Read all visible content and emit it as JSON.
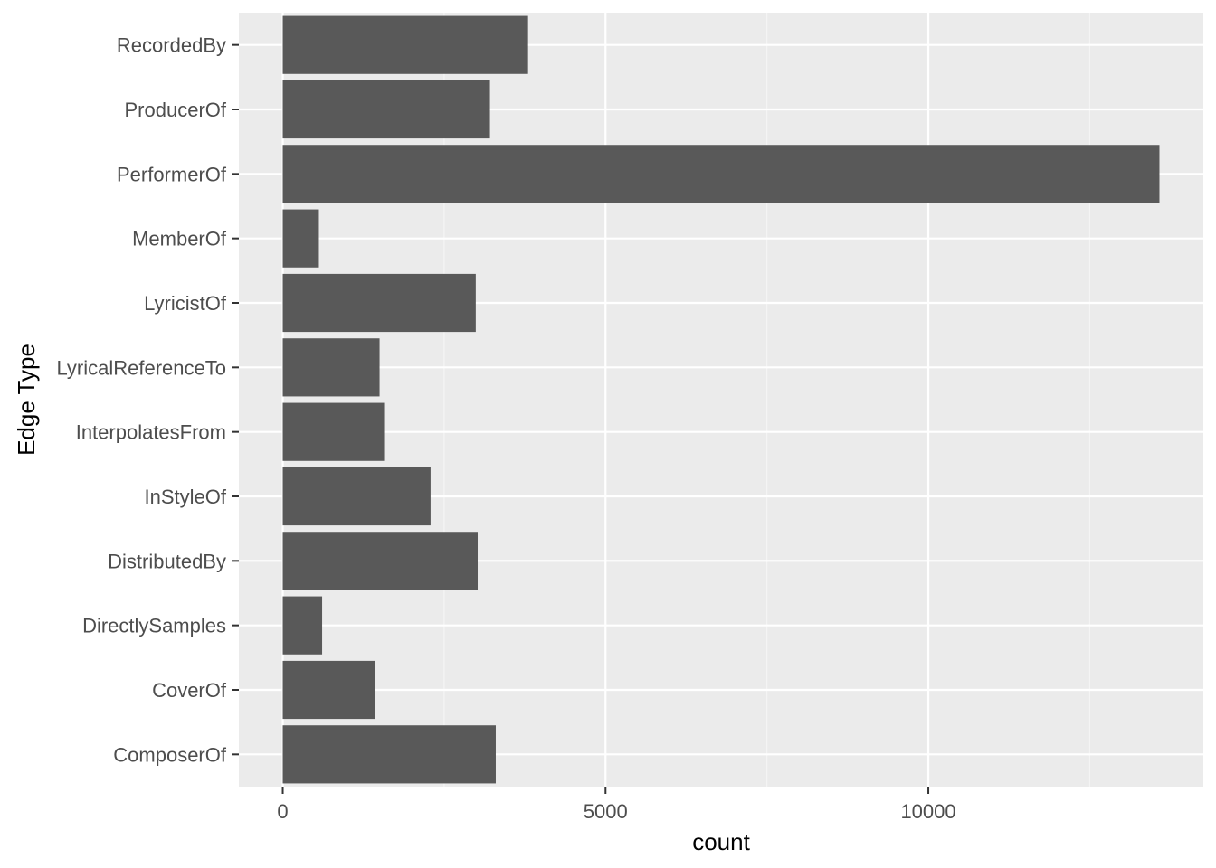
{
  "chart_data": {
    "type": "bar",
    "orientation": "horizontal",
    "categories": [
      "ComposerOf",
      "CoverOf",
      "DirectlySamples",
      "DistributedBy",
      "InStyleOf",
      "InterpolatesFrom",
      "LyricalReferenceTo",
      "LyricistOf",
      "MemberOf",
      "PerformerOf",
      "ProducerOf",
      "RecordedBy"
    ],
    "values": [
      3300,
      1430,
      610,
      3020,
      2290,
      1570,
      1500,
      2990,
      560,
      13580,
      3210,
      3800
    ],
    "title": "",
    "xlabel": "count",
    "ylabel": "Edge Type",
    "xlim": [
      -680,
      14260
    ],
    "x_ticks": [
      0,
      5000,
      10000
    ],
    "x_tick_labels": [
      "0",
      "5000",
      "10000"
    ],
    "x_minor_ticks": [
      2500,
      7500,
      12500
    ],
    "grid": true,
    "legend": "none",
    "colors": {
      "panel_background": "#ebebeb",
      "grid_major": "#ffffff",
      "grid_minor": "#f5f5f5",
      "bar_fill": "#595959",
      "tick_mark": "#333333",
      "tick_label": "#4d4d4d",
      "axis_title": "#000000"
    }
  }
}
